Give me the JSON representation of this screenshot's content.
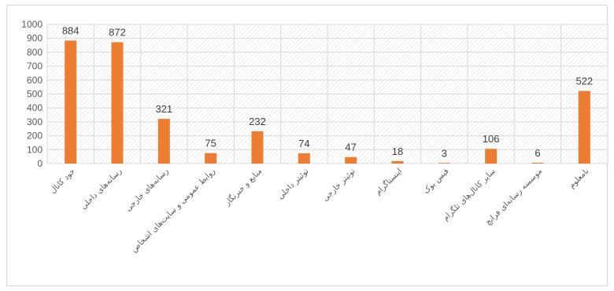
{
  "chart_data": {
    "type": "bar",
    "title": "",
    "xlabel": "",
    "ylabel": "",
    "ylim": [
      0,
      1000
    ],
    "yticks": [
      0,
      100,
      200,
      300,
      400,
      500,
      600,
      700,
      800,
      900,
      1000
    ],
    "grid": true,
    "legend": "none",
    "bar_color": "#ED7D31",
    "categories": [
      "خود کانال",
      "رسانه‌های داخلی",
      "رسانه‌های خارجی",
      "روابط عمومی و سایت‌های اشخاص",
      "منابع و خبرنگار",
      "توئیتر داخلی",
      "توئیتر خارجی",
      "اینستاگرام",
      "فیس بوک",
      "سایر کانال‌های تلگرام",
      "موسسه رسانه‌ای فرانچ",
      "نامعلوم"
    ],
    "values": [
      884,
      872,
      321,
      75,
      232,
      74,
      47,
      18,
      3,
      106,
      6,
      522
    ]
  }
}
